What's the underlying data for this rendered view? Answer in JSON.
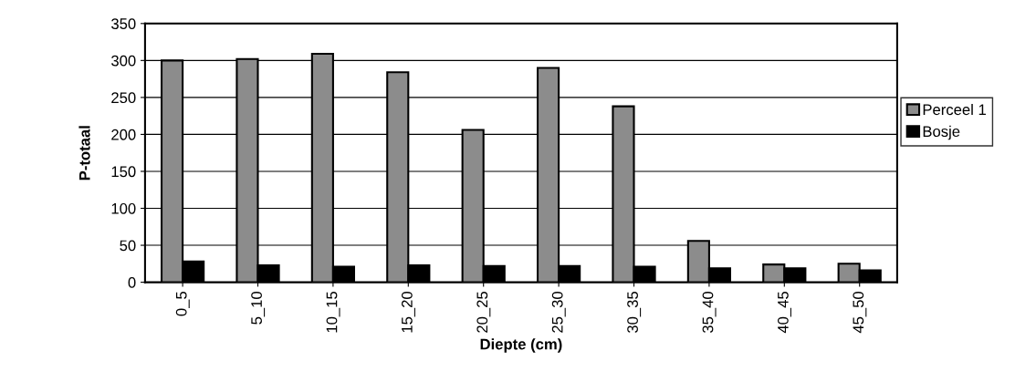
{
  "chart_data": {
    "type": "bar",
    "xlabel": "Diepte (cm)",
    "ylabel": "P-totaal",
    "categories": [
      "0_5",
      "5_10",
      "10_15",
      "15_20",
      "20_25",
      "25_30",
      "30_35",
      "35_40",
      "40_45",
      "45_50"
    ],
    "series": [
      {
        "name": "Perceel 1",
        "color": "#8c8c8c",
        "values": [
          300,
          302,
          309,
          284,
          206,
          290,
          238,
          56,
          24,
          25
        ]
      },
      {
        "name": "Bosje",
        "color": "#000000",
        "values": [
          28,
          23,
          21,
          23,
          22,
          22,
          21,
          19,
          19,
          16
        ]
      }
    ],
    "ylim": [
      0,
      350
    ],
    "yticks": [
      0,
      50,
      100,
      150,
      200,
      250,
      300,
      350
    ],
    "grid": "y",
    "legend": "right"
  }
}
